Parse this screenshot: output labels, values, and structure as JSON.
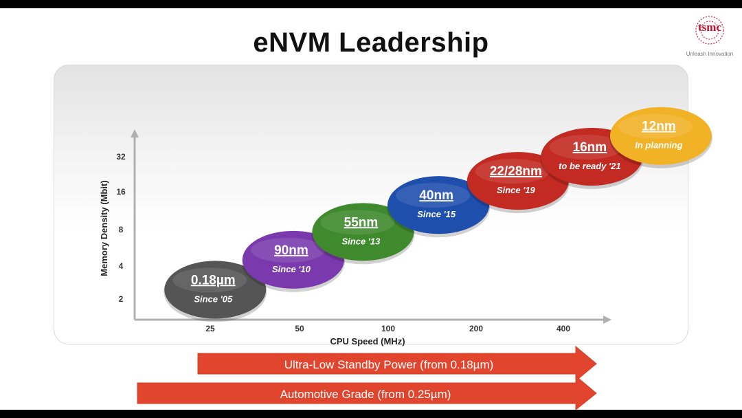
{
  "title": "eNVM Leadership",
  "logo": {
    "word": "tsmc",
    "tagline": "Unleash Innovation"
  },
  "chart_data": {
    "type": "scatter",
    "title": "eNVM Leadership",
    "xlabel": "CPU Speed (MHz)",
    "ylabel": "Memory Density (Mbit)",
    "x_ticks": [
      25,
      50,
      100,
      200,
      400
    ],
    "y_ticks": [
      2,
      4,
      8,
      16,
      32
    ],
    "x_scale": "log2",
    "y_scale": "log2",
    "nodes": [
      {
        "node": "0.18µm",
        "since": "Since '05",
        "cpu_mhz": 26,
        "density_mbit": 2.4,
        "color": "#555555"
      },
      {
        "node": "90nm",
        "since": "Since '10",
        "cpu_mhz": 48,
        "density_mbit": 4.3,
        "color": "#7a3aad"
      },
      {
        "node": "55nm",
        "since": "Since '13",
        "cpu_mhz": 83,
        "density_mbit": 7.4,
        "color": "#3f8a2c"
      },
      {
        "node": "40nm",
        "since": "Since '15",
        "cpu_mhz": 150,
        "density_mbit": 12.5,
        "color": "#1f4fad"
      },
      {
        "node": "22/28nm",
        "since": "Since '19",
        "cpu_mhz": 280,
        "density_mbit": 20,
        "color": "#c22a22"
      },
      {
        "node": "16nm",
        "since": "to be ready '21",
        "cpu_mhz": 500,
        "density_mbit": 32,
        "color": "#c22a22"
      },
      {
        "node": "12nm",
        "since": "In planning",
        "cpu_mhz": 860,
        "density_mbit": 48,
        "color": "#f1b226"
      }
    ]
  },
  "arrows": [
    {
      "label": "Ultra-Low Standby Power (from 0.18µm)"
    },
    {
      "label": "Automotive Grade (from 0.25µm)"
    }
  ],
  "colors": {
    "arrow": "#e2452d",
    "axis": "#b0b0b0"
  }
}
